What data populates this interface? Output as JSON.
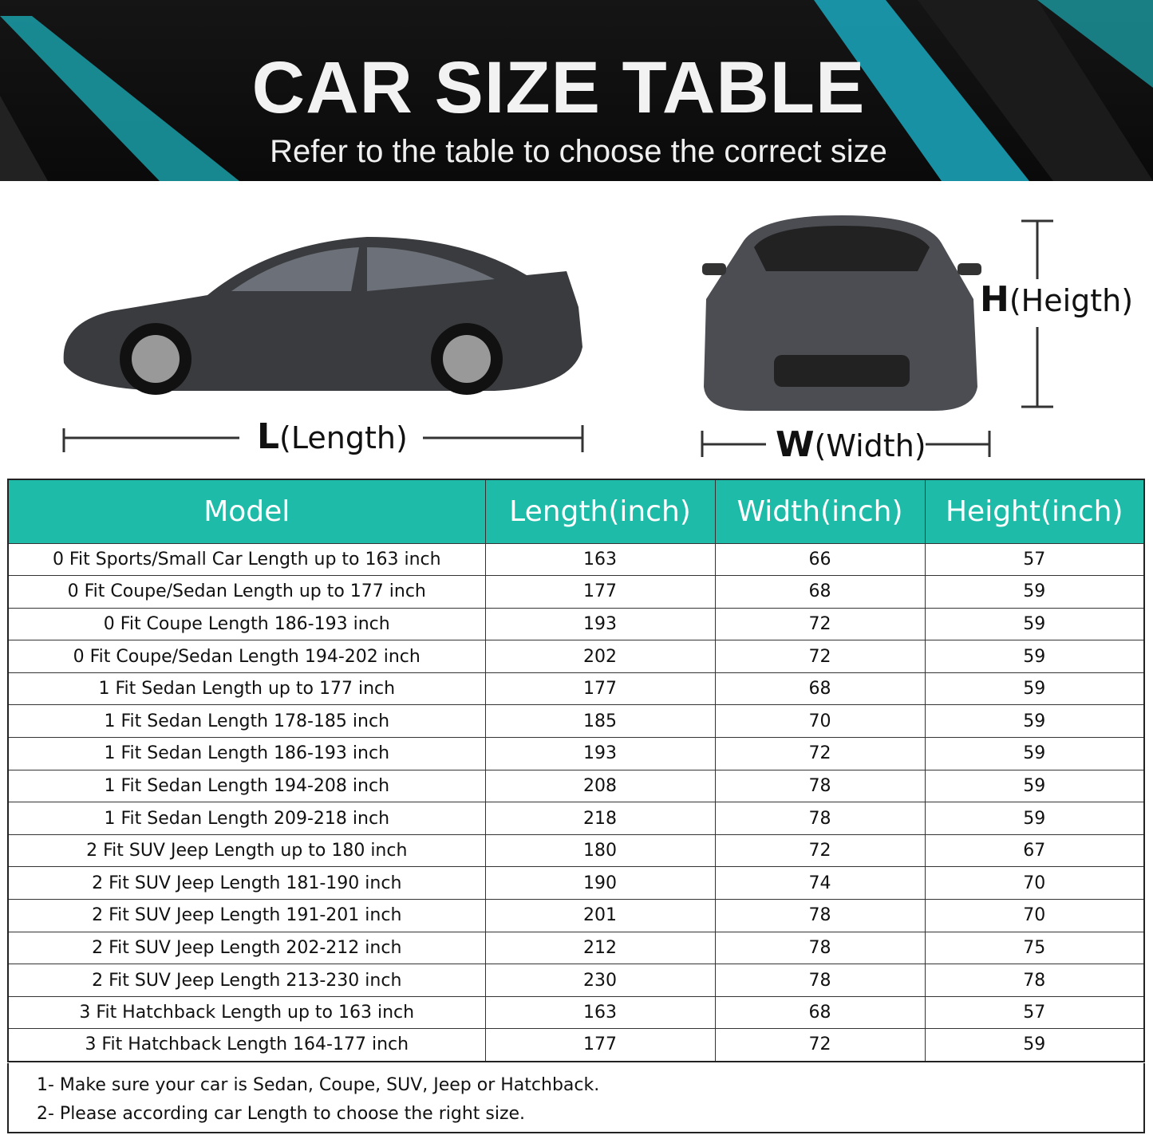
{
  "banner": {
    "title": "CAR SIZE TABLE",
    "subtitle": "Refer to the table to choose the correct size",
    "accent_color": "#1fa7b0"
  },
  "diagram": {
    "length_letter": "L",
    "length_label": "(Length)",
    "width_letter": "W",
    "width_label": "(Width)",
    "height_letter": "H",
    "height_label": "(Heigth)"
  },
  "table": {
    "header_color": "#1fbba9",
    "headers": [
      "Model",
      "Length(inch)",
      "Width(inch)",
      "Height(inch)"
    ],
    "rows": [
      [
        "0 Fit Sports/Small Car Length up to 163 inch",
        "163",
        "66",
        "57"
      ],
      [
        "0 Fit Coupe/Sedan Length up to 177 inch",
        "177",
        "68",
        "59"
      ],
      [
        "0 Fit Coupe Length 186-193 inch",
        "193",
        "72",
        "59"
      ],
      [
        "0 Fit Coupe/Sedan Length 194-202 inch",
        "202",
        "72",
        "59"
      ],
      [
        "1 Fit Sedan Length up to 177 inch",
        "177",
        "68",
        "59"
      ],
      [
        "1 Fit Sedan Length 178-185 inch",
        "185",
        "70",
        "59"
      ],
      [
        "1 Fit Sedan Length 186-193 inch",
        "193",
        "72",
        "59"
      ],
      [
        "1 Fit Sedan Length 194-208 inch",
        "208",
        "78",
        "59"
      ],
      [
        "1 Fit Sedan Length 209-218 inch",
        "218",
        "78",
        "59"
      ],
      [
        "2 Fit SUV Jeep Length up to 180 inch",
        "180",
        "72",
        "67"
      ],
      [
        "2 Fit SUV Jeep Length 181-190 inch",
        "190",
        "74",
        "70"
      ],
      [
        "2 Fit SUV Jeep Length 191-201 inch",
        "201",
        "78",
        "70"
      ],
      [
        "2 Fit SUV Jeep Length 202-212 inch",
        "212",
        "78",
        "75"
      ],
      [
        "2 Fit SUV Jeep Length 213-230 inch",
        "230",
        "78",
        "78"
      ],
      [
        "3 Fit Hatchback Length up to 163 inch",
        "163",
        "68",
        "57"
      ],
      [
        "3 Fit Hatchback Length 164-177 inch",
        "177",
        "72",
        "59"
      ]
    ]
  },
  "notes": [
    "1- Make sure your car is Sedan, Coupe, SUV, Jeep or Hatchback.",
    "2- Please according car Length to choose the right size."
  ]
}
